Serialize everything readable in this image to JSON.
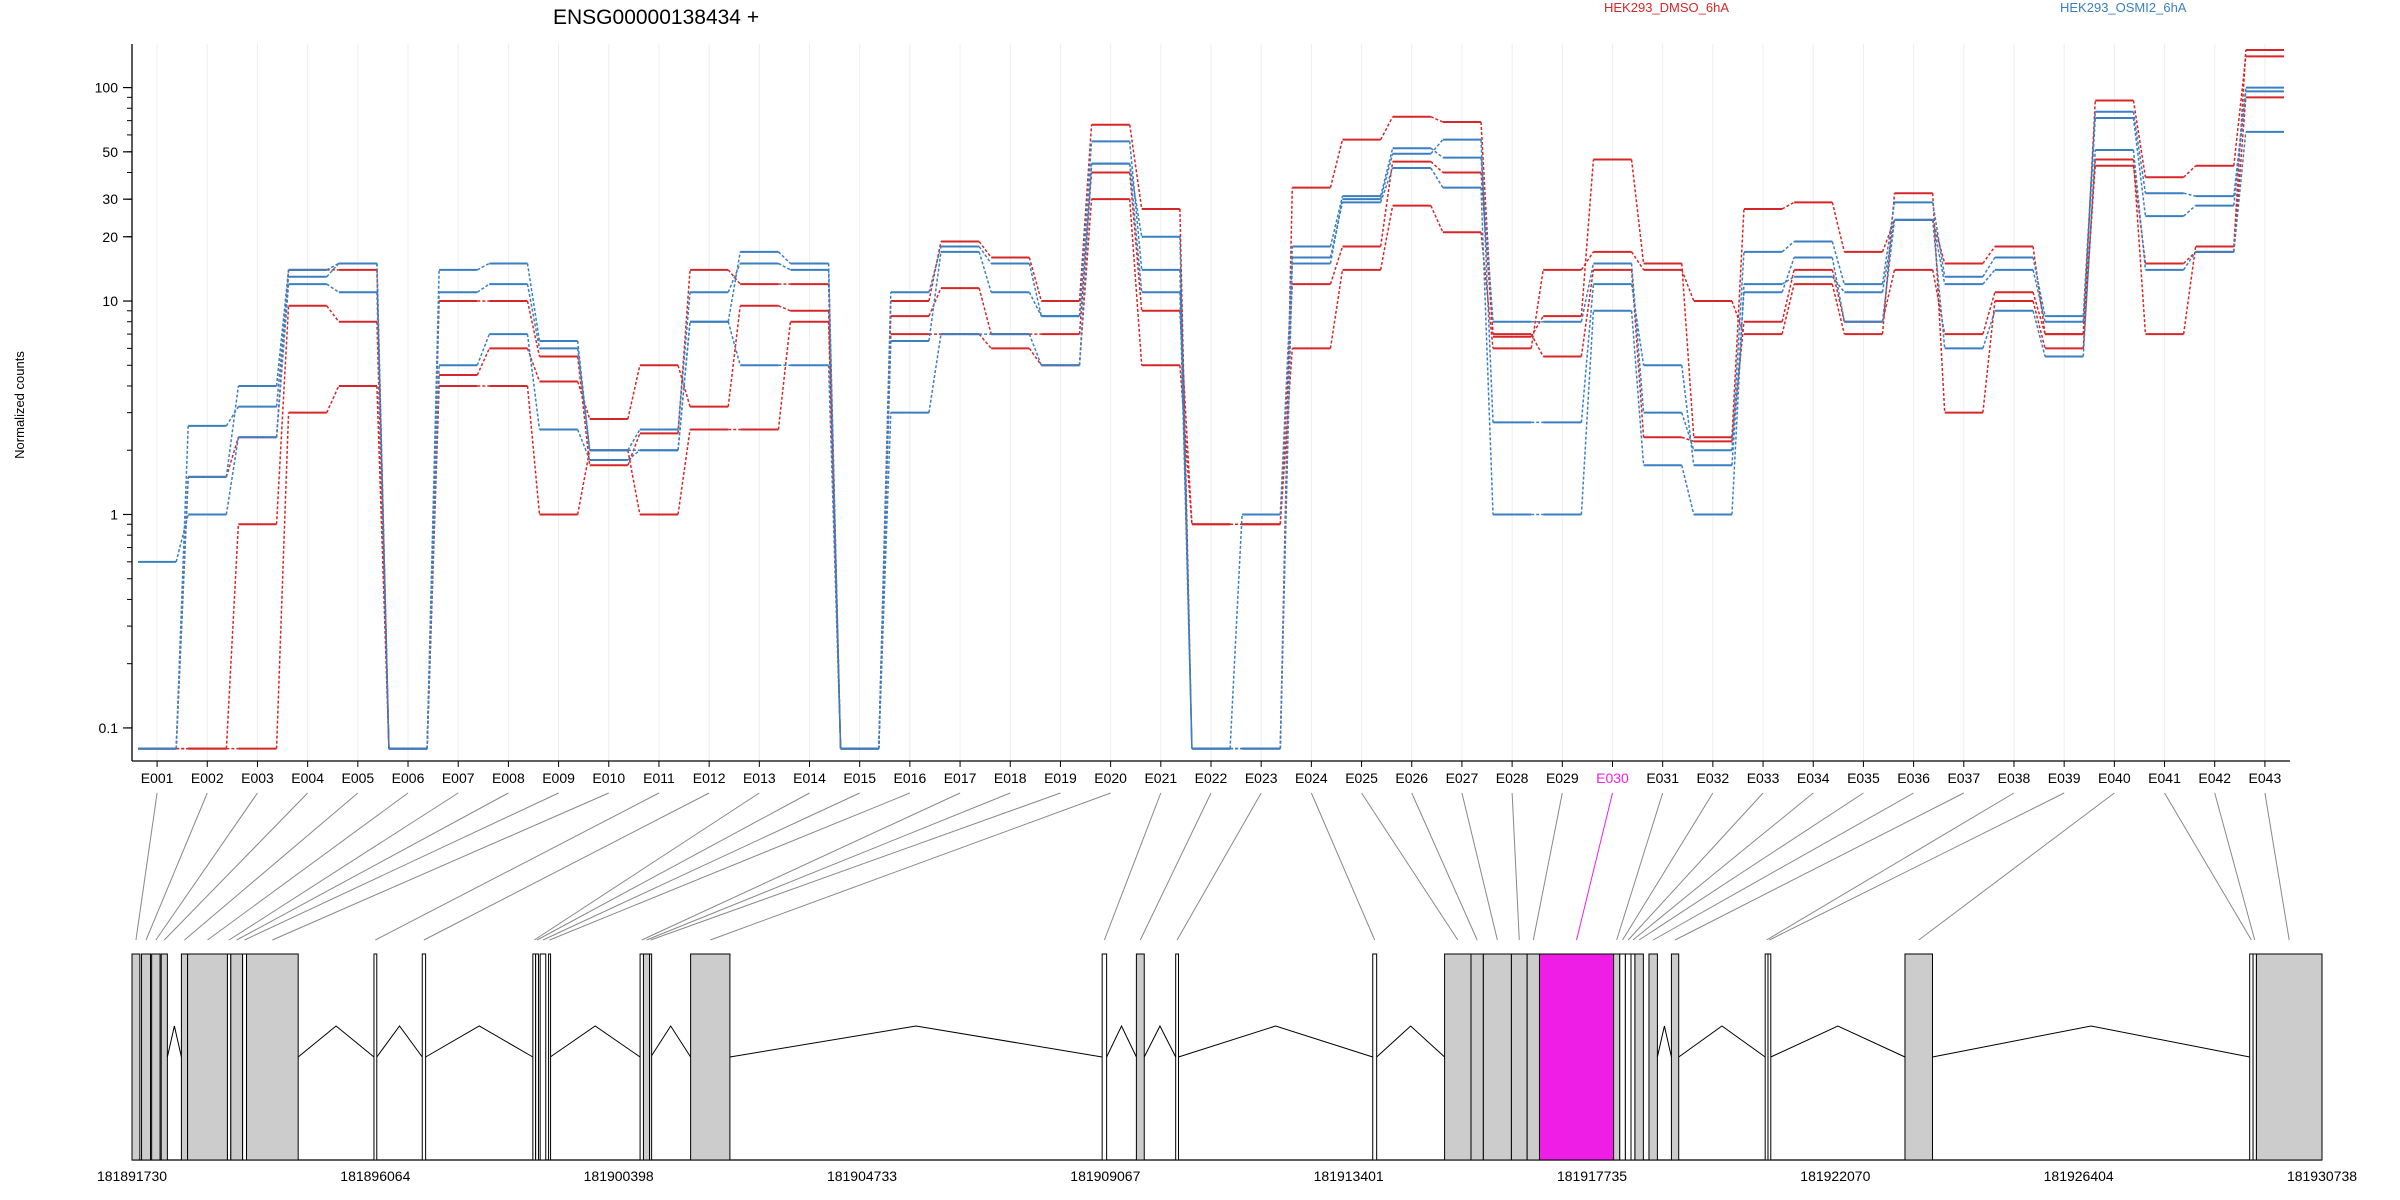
{
  "chart_data": {
    "type": "line",
    "title": "ENSG00000138434 +",
    "ylabel": "Normalized counts",
    "y_scale": "log",
    "ylim": [
      0.07,
      160
    ],
    "yticks": [
      0.1,
      1,
      10,
      20,
      30,
      50,
      100
    ],
    "ytick_labels": [
      "0.1",
      "1",
      "10",
      "20",
      "30",
      "50",
      "100"
    ],
    "grid": "vertical",
    "legend_placement": "top",
    "categories": [
      "E001",
      "E002",
      "E003",
      "E004",
      "E005",
      "E006",
      "E007",
      "E008",
      "E009",
      "E010",
      "E011",
      "E012",
      "E013",
      "E014",
      "E015",
      "E016",
      "E017",
      "E018",
      "E019",
      "E020",
      "E021",
      "E022",
      "E023",
      "E024",
      "E025",
      "E026",
      "E027",
      "E028",
      "E029",
      "E030",
      "E031",
      "E032",
      "E033",
      "E034",
      "E035",
      "E036",
      "E037",
      "E038",
      "E039",
      "E040",
      "E041",
      "E042",
      "E043"
    ],
    "series": [
      {
        "name": "HEK293_DMSO_6hA",
        "color": "#d62728",
        "values": [
          0.08,
          0.08,
          0.08,
          3.0,
          4.0,
          0.08,
          4.0,
          4.0,
          1.0,
          2.0,
          1.0,
          2.5,
          2.5,
          8.0,
          0.08,
          7.0,
          7.0,
          6.0,
          5.0,
          30,
          5.0,
          0.9,
          0.9,
          6.0,
          14,
          28,
          21,
          6.0,
          14,
          17,
          14,
          10,
          7.0,
          12,
          7.0,
          32,
          3.0,
          10,
          6.0,
          46,
          7.0,
          18,
          150
        ]
      },
      {
        "name": "HEK293_DMSO_6hA",
        "color": "#d62728",
        "values": [
          0.08,
          0.08,
          0.9,
          9.5,
          8.0,
          0.08,
          4.5,
          6.0,
          4.2,
          2.8,
          5.0,
          3.2,
          9.5,
          9.0,
          0.08,
          8.5,
          11.5,
          7.0,
          7.0,
          40,
          9.0,
          0.9,
          0.9,
          12,
          18,
          45,
          40,
          7.0,
          5.5,
          14,
          2.3,
          2.2,
          8.0,
          14,
          8.0,
          14,
          7.0,
          11,
          7.0,
          43,
          15,
          17,
          90
        ]
      },
      {
        "name": "HEK293_DMSO_6hA",
        "color": "#d62728",
        "values": [
          0.08,
          1.5,
          2.3,
          14,
          14,
          0.08,
          10,
          10,
          5.5,
          1.7,
          2.4,
          14,
          12,
          12,
          0.08,
          10,
          19,
          16,
          10,
          67,
          27,
          0.08,
          0.08,
          34,
          57,
          73,
          69,
          6.8,
          8.5,
          46,
          15,
          2.3,
          27,
          29,
          17,
          24,
          15,
          18,
          7.0,
          87,
          38,
          43,
          140
        ]
      }
    ],
    "series_blue": [
      {
        "name": "HEK293_OSMI2_6hA",
        "color": "#3a7fc1",
        "values": [
          0.6,
          1.0,
          2.3,
          12,
          11,
          0.08,
          5.0,
          7.0,
          2.5,
          1.8,
          2.0,
          8.0,
          5.0,
          5.0,
          0.08,
          3.0,
          7.0,
          7.0,
          5.0,
          44,
          11,
          0.08,
          1.0,
          16,
          29,
          42,
          34,
          1.0,
          1.0,
          9.0,
          1.7,
          1.0,
          12,
          13,
          11,
          24,
          6.0,
          9.0,
          5.5,
          51,
          14,
          17,
          62
        ]
      },
      {
        "name": "HEK293_OSMI2_6hA",
        "color": "#3a7fc1",
        "values": [
          0.08,
          2.6,
          3.2,
          13,
          15,
          0.08,
          11,
          12,
          6.0,
          2.0,
          2.5,
          11,
          15,
          14,
          0.08,
          6.5,
          17,
          11,
          8.5,
          56,
          14,
          0.08,
          0.08,
          15,
          30,
          49,
          57,
          2.7,
          2.7,
          12,
          5.0,
          1.7,
          11,
          16,
          8.0,
          24,
          12,
          14,
          8.0,
          72,
          25,
          28,
          96
        ]
      },
      {
        "name": "HEK293_OSMI2_6hA",
        "color": "#3a7fc1",
        "values": [
          0.08,
          1.5,
          4.0,
          14,
          15,
          0.08,
          14,
          15,
          6.5,
          2.0,
          2.0,
          8.0,
          17,
          15,
          0.08,
          11,
          18,
          15,
          8.5,
          44,
          20,
          0.08,
          0.08,
          18,
          31,
          52,
          47,
          8.0,
          8.0,
          15,
          3.0,
          2.0,
          17,
          19,
          12,
          29,
          13,
          16,
          8.5,
          77,
          32,
          31,
          100
        ]
      }
    ],
    "legend": [
      {
        "label": "HEK293_DMSO_6hA",
        "color": "#d62728"
      },
      {
        "label": "HEK293_OSMI2_6hA",
        "color": "#3a7fc1"
      }
    ],
    "highlighted_exon": "E030",
    "highlight_color": "#ee1ee6",
    "genomic_ticks": [
      "181891730",
      "181896064",
      "181900398",
      "181904733",
      "181909067",
      "181913401",
      "181917735",
      "181922070",
      "181926404",
      "181930738"
    ],
    "gene_start": 181891730,
    "gene_end": 181930738,
    "exons": [
      {
        "id": "E001",
        "start": 181891730,
        "end": 181891870
      },
      {
        "id": "E002",
        "start": 181891900,
        "end": 181892060
      },
      {
        "id": "E003",
        "start": 181892080,
        "end": 181892230
      },
      {
        "id": "E004",
        "start": 181892250,
        "end": 181892360
      },
      {
        "id": "E005",
        "start": 181892610,
        "end": 181892720
      },
      {
        "id": "E006",
        "start": 181892720,
        "end": 181893430
      },
      {
        "id": "E007",
        "start": 181893430,
        "end": 181893490
      },
      {
        "id": "E008",
        "start": 181893490,
        "end": 181893700
      },
      {
        "id": "E009",
        "start": 181893700,
        "end": 181893770
      },
      {
        "id": "E010",
        "start": 181893770,
        "end": 181894690
      },
      {
        "id": "E011",
        "start": 181896040,
        "end": 181896090
      },
      {
        "id": "E012",
        "start": 181896900,
        "end": 181896960
      },
      {
        "id": "E013",
        "start": 181898870,
        "end": 181898920
      },
      {
        "id": "E014",
        "start": 181898920,
        "end": 181898970
      },
      {
        "id": "E015",
        "start": 181899000,
        "end": 181899100
      },
      {
        "id": "E016",
        "start": 181899150,
        "end": 181899180
      },
      {
        "id": "E017",
        "start": 181900780,
        "end": 181900840
      },
      {
        "id": "E018",
        "start": 181900840,
        "end": 181900950
      },
      {
        "id": "E019",
        "start": 181900950,
        "end": 181900970
      },
      {
        "id": "E020",
        "start": 181901680,
        "end": 181902380
      },
      {
        "id": "E021",
        "start": 181909010,
        "end": 181909090
      },
      {
        "id": "E022",
        "start": 181909620,
        "end": 181909760
      },
      {
        "id": "E023",
        "start": 181910320,
        "end": 181910370
      },
      {
        "id": "E024",
        "start": 181913830,
        "end": 181913900
      },
      {
        "id": "E025",
        "start": 181915110,
        "end": 181915580
      },
      {
        "id": "E026",
        "start": 181915580,
        "end": 181915800
      },
      {
        "id": "E027",
        "start": 181915800,
        "end": 181916300
      },
      {
        "id": "E028",
        "start": 181916300,
        "end": 181916580
      },
      {
        "id": "E029",
        "start": 181916580,
        "end": 181916800
      },
      {
        "id": "E030",
        "start": 181916800,
        "end": 181918120
      },
      {
        "id": "E031",
        "start": 181918120,
        "end": 181918230
      },
      {
        "id": "E032",
        "start": 181918230,
        "end": 181918330
      },
      {
        "id": "E033",
        "start": 181918330,
        "end": 181918430
      },
      {
        "id": "E034",
        "start": 181918430,
        "end": 181918500
      },
      {
        "id": "E035",
        "start": 181918500,
        "end": 181918650
      },
      {
        "id": "E036",
        "start": 181918750,
        "end": 181918900
      },
      {
        "id": "E037",
        "start": 181919150,
        "end": 181919280
      },
      {
        "id": "E038",
        "start": 181920820,
        "end": 181920870
      },
      {
        "id": "E039",
        "start": 181920870,
        "end": 181920920
      },
      {
        "id": "E040",
        "start": 181923310,
        "end": 181923800
      },
      {
        "id": "E041",
        "start": 181929450,
        "end": 181929510
      },
      {
        "id": "E042",
        "start": 181929510,
        "end": 181929570
      },
      {
        "id": "E043",
        "start": 181929570,
        "end": 181930738
      }
    ]
  }
}
